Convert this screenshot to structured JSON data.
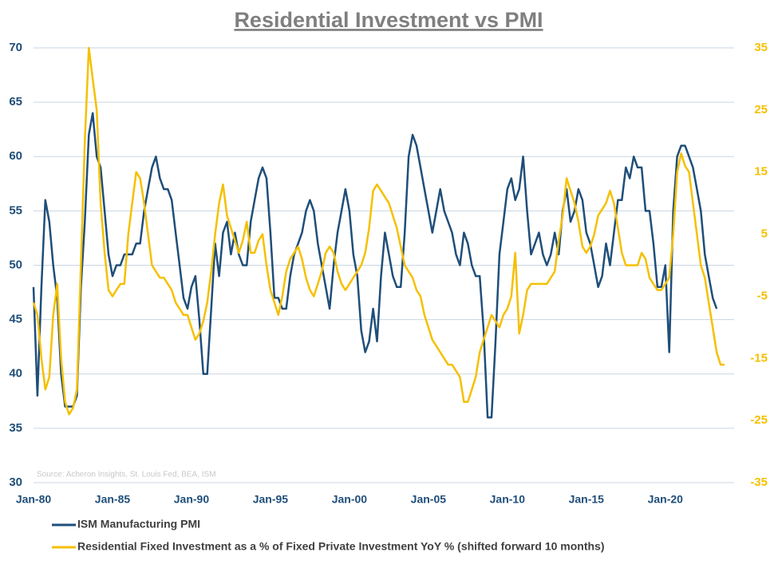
{
  "chart_data": {
    "type": "line",
    "title": "Residential Investment vs PMI",
    "annotation": "Source: Acheron Insights, St. Louis Fed, BEA, ISM",
    "categories": [
      "Jan-80",
      null,
      null,
      null,
      null,
      null,
      null,
      null,
      null,
      null,
      null,
      null,
      null,
      null,
      null,
      null,
      null,
      null,
      null,
      null,
      "Jan-85",
      null,
      null,
      null,
      null,
      null,
      null,
      null,
      null,
      null,
      null,
      null,
      null,
      null,
      null,
      null,
      null,
      null,
      null,
      null,
      "Jan-90",
      null,
      null,
      null,
      null,
      null,
      null,
      null,
      null,
      null,
      null,
      null,
      null,
      null,
      null,
      null,
      null,
      null,
      null,
      null,
      "Jan-95",
      null,
      null,
      null,
      null,
      null,
      null,
      null,
      null,
      null,
      null,
      null,
      null,
      null,
      null,
      null,
      null,
      null,
      null,
      null,
      "Jan-00",
      null,
      null,
      null,
      null,
      null,
      null,
      null,
      null,
      null,
      null,
      null,
      null,
      null,
      null,
      null,
      null,
      null,
      null,
      null,
      "Jan-05",
      null,
      null,
      null,
      null,
      null,
      null,
      null,
      null,
      null,
      null,
      null,
      null,
      null,
      null,
      null,
      null,
      null,
      null,
      null,
      "Jan-10",
      null,
      null,
      null,
      null,
      null,
      null,
      null,
      null,
      null,
      null,
      null,
      null,
      null,
      null,
      null,
      null,
      null,
      null,
      null,
      "Jan-15",
      null,
      null,
      null,
      null,
      null,
      null,
      null,
      null,
      null,
      null,
      null,
      null,
      null,
      null,
      null,
      null,
      null,
      null,
      null,
      "Jan-20",
      null,
      null,
      null,
      null,
      null,
      null,
      null,
      null,
      null,
      null,
      null,
      null,
      null,
      null,
      null
    ],
    "ylim": [
      30,
      70
    ],
    "yticks": [
      30,
      35,
      40,
      45,
      50,
      55,
      60,
      65,
      70
    ],
    "y2lim": [
      -35,
      35
    ],
    "y2ticks": [
      -35,
      -25,
      -15,
      -5,
      5,
      15,
      25,
      35
    ],
    "grid": true,
    "series": [
      {
        "name": "ISM Manufacturing PMI",
        "color": "#1f4e79",
        "values": [
          48,
          38,
          48,
          56,
          54,
          50,
          47,
          40,
          37,
          37,
          37,
          38,
          48,
          54,
          62,
          64,
          60,
          59,
          55,
          51,
          49,
          50,
          50,
          51,
          51,
          51,
          52,
          52,
          55,
          57,
          59,
          60,
          58,
          57,
          57,
          56,
          53,
          50,
          47,
          46,
          48,
          49,
          45,
          40,
          40,
          46,
          52,
          49,
          53,
          54,
          51,
          53,
          51,
          50,
          50,
          54,
          56,
          58,
          59,
          58,
          53,
          47,
          47,
          46,
          46,
          49,
          51,
          52,
          53,
          55,
          56,
          55,
          52,
          50,
          48,
          46,
          50,
          53,
          55,
          57,
          55,
          51,
          49,
          44,
          42,
          43,
          46,
          43,
          49,
          53,
          51,
          49,
          48,
          48,
          53,
          60,
          62,
          61,
          59,
          57,
          55,
          53,
          55,
          57,
          55,
          54,
          53,
          51,
          50,
          53,
          52,
          50,
          49,
          49,
          44,
          36,
          36,
          43,
          51,
          54,
          57,
          58,
          56,
          57,
          60,
          55,
          51,
          52,
          53,
          51,
          50,
          51,
          53,
          51,
          55,
          57,
          54,
          55,
          57,
          56,
          53,
          52,
          50,
          48,
          49,
          52,
          50,
          53,
          56,
          56,
          59,
          58,
          60,
          59,
          59,
          55,
          55,
          52,
          48,
          48,
          50,
          42,
          55,
          60,
          61,
          61,
          60,
          59,
          57,
          55,
          51,
          49,
          47,
          46,
          null,
          null
        ]
      },
      {
        "name": "Residential Fixed Investment as a % of Fixed Private Investment YoY % (shifted forward 10 months)",
        "color": "#f5c000",
        "axis": "y2",
        "values": [
          -6,
          -8,
          -15,
          -20,
          -18,
          -8,
          -3,
          -15,
          -22,
          -24,
          -23,
          -20,
          0,
          20,
          35,
          30,
          25,
          10,
          2,
          -4,
          -5,
          -4,
          -3,
          -3,
          5,
          10,
          15,
          14,
          10,
          5,
          0,
          -1,
          -2,
          -2,
          -3,
          -4,
          -6,
          -7,
          -8,
          -8,
          -10,
          -12,
          -11,
          -9,
          -6,
          -1,
          5,
          10,
          13,
          8,
          6,
          4,
          2,
          4,
          7,
          2,
          2,
          4,
          5,
          0,
          -4,
          -6,
          -8,
          -5,
          -1,
          1,
          2,
          3,
          1,
          -2,
          -4,
          -5,
          -3,
          -1,
          2,
          3,
          2,
          -1,
          -3,
          -4,
          -3,
          -2,
          -1,
          0,
          2,
          6,
          12,
          13,
          12,
          11,
          10,
          8,
          6,
          3,
          0,
          -1,
          -2,
          -4,
          -5,
          -8,
          -10,
          -12,
          -13,
          -14,
          -15,
          -16,
          -16,
          -17,
          -18,
          -22,
          -22,
          -20,
          -18,
          -14,
          -12,
          -10,
          -8,
          -9,
          -10,
          -8,
          -7,
          -5,
          2,
          -11,
          -8,
          -4,
          -3,
          -3,
          -3,
          -3,
          -3,
          -2,
          -1,
          4,
          8,
          14,
          12,
          10,
          7,
          3,
          2,
          3,
          5,
          8,
          9,
          10,
          12,
          10,
          6,
          2,
          0,
          0,
          0,
          0,
          2,
          1,
          -2,
          -3,
          -4,
          -4,
          -3,
          -2,
          5,
          15,
          18,
          16,
          15,
          10,
          5,
          0,
          -2,
          -6,
          -10,
          -14,
          -16,
          -16
        ]
      }
    ]
  }
}
